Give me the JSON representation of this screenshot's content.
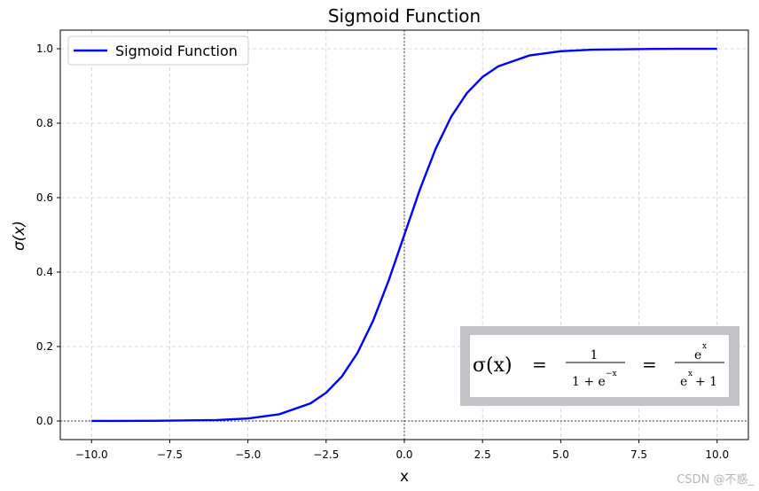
{
  "chart_data": {
    "type": "line",
    "title": "Sigmoid Function",
    "xlabel": "x",
    "ylabel": "σ(x)",
    "xlim": [
      -11,
      11
    ],
    "ylim": [
      -0.05,
      1.05
    ],
    "xticks": [
      -10.0,
      -7.5,
      -5.0,
      -2.5,
      0.0,
      2.5,
      5.0,
      7.5,
      10.0
    ],
    "xtick_labels": [
      "−10.0",
      "−7.5",
      "−5.0",
      "−2.5",
      "0.0",
      "2.5",
      "5.0",
      "7.5",
      "10.0"
    ],
    "yticks": [
      0.0,
      0.2,
      0.4,
      0.6,
      0.8,
      1.0
    ],
    "ytick_labels": [
      "0.0",
      "0.2",
      "0.4",
      "0.6",
      "0.8",
      "1.0"
    ],
    "grid": true,
    "legend_position": "top-left",
    "reference_lines": {
      "x": 0,
      "y": 0
    },
    "series": [
      {
        "name": "Sigmoid Function",
        "color": "#0000ff",
        "x": [
          -10,
          -8,
          -6,
          -5,
          -4,
          -3,
          -2.5,
          -2,
          -1.5,
          -1,
          -0.5,
          0,
          0.5,
          1,
          1.5,
          2,
          2.5,
          3,
          4,
          5,
          6,
          8,
          10
        ],
        "y": [
          4.54e-05,
          0.000335,
          0.00247,
          0.00669,
          0.018,
          0.0474,
          0.0759,
          0.1192,
          0.1824,
          0.2689,
          0.3775,
          0.5,
          0.6225,
          0.7311,
          0.8176,
          0.8808,
          0.9241,
          0.9526,
          0.982,
          0.9933,
          0.9975,
          0.99966,
          0.99995
        ]
      }
    ],
    "formula": {
      "lhs": "σ(x)",
      "eq": "=",
      "frac1_num": "1",
      "frac1_den_base": "1 + e",
      "frac1_den_exp": "−x",
      "frac2_num_base": "e",
      "frac2_num_exp": "x",
      "frac2_den_base": "e",
      "frac2_den_exp": "x",
      "frac2_den_tail": "+ 1"
    },
    "watermark": "CSDN @不惑_"
  }
}
